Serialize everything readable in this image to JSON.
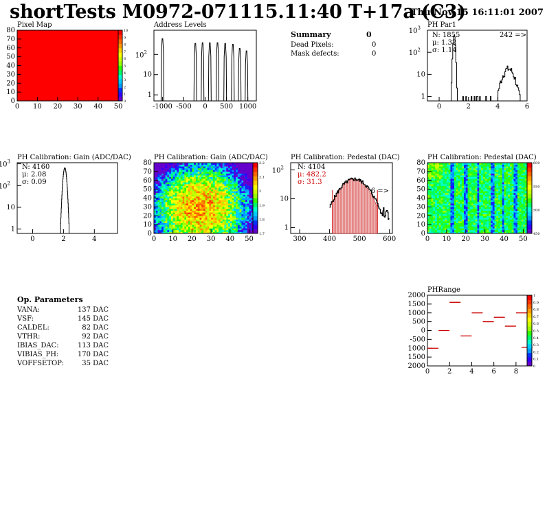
{
  "header": {
    "title": "shortTests M0972-071115.11:40 T+17a (C3)",
    "date": "Thu Nov 15 16:11:01 2007"
  },
  "summary": {
    "title": "Summary",
    "title_value": "0",
    "rows": [
      {
        "label": "Dead Pixels:",
        "value": "0"
      },
      {
        "label": "Mask defects:",
        "value": "0"
      }
    ]
  },
  "op_parameters": {
    "title": "Op. Parameters",
    "rows": [
      {
        "label": "VANA:",
        "value": "137 DAC"
      },
      {
        "label": "VSF:",
        "value": "145 DAC"
      },
      {
        "label": "CALDEL:",
        "value": "82 DAC"
      },
      {
        "label": "VTHR:",
        "value": "92 DAC"
      },
      {
        "label": "IBIAS_DAC:",
        "value": "113 DAC"
      },
      {
        "label": "VIBIAS_PH:",
        "value": "170 DAC"
      },
      {
        "label": "VOFFSETOP:",
        "value": "35 DAC"
      }
    ]
  },
  "chart_data": [
    {
      "id": "pixel-map",
      "type": "heatmap",
      "title": "Pixel Map",
      "xlim": [
        0,
        52
      ],
      "ylim": [
        0,
        80
      ],
      "xticks": [
        "0",
        "10",
        "20",
        "30",
        "40",
        "50"
      ],
      "yticks": [
        "0",
        "10",
        "20",
        "30",
        "40",
        "50",
        "60",
        "70",
        "80"
      ],
      "fill_value": 10,
      "fill_color": "#ff0000",
      "zticks": [
        "10",
        "9",
        "8",
        "7",
        "6",
        "5",
        "4",
        "3",
        "2",
        "1",
        "0"
      ]
    },
    {
      "id": "address-levels",
      "type": "line",
      "title": "Address Levels",
      "xlim": [
        -1200,
        1200
      ],
      "yscale": "log",
      "xticks": [
        "-1000",
        "-500",
        "0",
        "500",
        "1000"
      ],
      "yticks": [
        "1",
        "10",
        "10^2"
      ],
      "peaks": [
        {
          "x": -1000,
          "y": 600
        },
        {
          "x": -230,
          "y": 350
        },
        {
          "x": -60,
          "y": 380
        },
        {
          "x": 110,
          "y": 380
        },
        {
          "x": 290,
          "y": 380
        },
        {
          "x": 470,
          "y": 350
        },
        {
          "x": 650,
          "y": 320
        },
        {
          "x": 810,
          "y": 200
        },
        {
          "x": 970,
          "y": 150
        }
      ]
    },
    {
      "id": "ph-par1",
      "type": "line",
      "title": "PH Par1",
      "yscale": "log",
      "xlim": [
        -0.8,
        6
      ],
      "xticks": [
        "0",
        "2",
        "4",
        "6"
      ],
      "yticks": [
        "1",
        "10",
        "10^2",
        "10^3"
      ],
      "stats": [
        "N: 1855",
        "μ: 1.32",
        "σ: 1.14"
      ],
      "overflow": "242 =>"
    },
    {
      "id": "ph-gain-1d",
      "type": "line",
      "title": "PH Calibration: Gain (ADC/DAC)",
      "yscale": "log",
      "xlim": [
        -1,
        5.5
      ],
      "xticks": [
        "0",
        "2",
        "4"
      ],
      "yticks": [
        "1",
        "10",
        "10^2",
        "10^3"
      ],
      "stats": [
        "N: 4160",
        "μ: 2.08",
        "σ: 0.09"
      ]
    },
    {
      "id": "ph-gain-map",
      "type": "heatmap",
      "title": "PH Calibration: Gain (ADC/DAC)",
      "xlim": [
        0,
        52
      ],
      "ylim": [
        0,
        80
      ],
      "xticks": [
        "0",
        "10",
        "20",
        "30",
        "40",
        "50"
      ],
      "yticks": [
        "0",
        "10",
        "20",
        "30",
        "40",
        "50",
        "60",
        "70",
        "80"
      ],
      "zticks": [
        "2.2",
        "2.1",
        "2",
        "1.9",
        "1.8",
        "1.7"
      ]
    },
    {
      "id": "ph-pedestal-1d",
      "type": "line",
      "title": "PH Calibration: Pedestal (DAC)",
      "yscale": "log",
      "xlim": [
        270,
        610
      ],
      "xticks": [
        "300",
        "400",
        "500",
        "600"
      ],
      "yticks": [
        "1",
        "10",
        "10^2"
      ],
      "stats": [
        "N: 4104",
        "μ: 482.2",
        "σ: 31.3"
      ],
      "overflow": "6 =>",
      "fit_range": [
        410,
        560
      ]
    },
    {
      "id": "ph-pedestal-map",
      "type": "heatmap",
      "title": "PH Calibration: Pedestal (DAC)",
      "xlim": [
        0,
        52
      ],
      "ylim": [
        0,
        80
      ],
      "xticks": [
        "0",
        "10",
        "20",
        "30",
        "40",
        "50"
      ],
      "yticks": [
        "0",
        "10",
        "20",
        "30",
        "40",
        "50",
        "60",
        "70",
        "80"
      ],
      "zticks": [
        "600",
        "550",
        "500",
        "450"
      ]
    },
    {
      "id": "ph-range",
      "type": "scatter",
      "title": "PHRange",
      "xlim": [
        0,
        9
      ],
      "ylim": [
        -2000,
        2000
      ],
      "xticks": [
        "0",
        "2",
        "4",
        "6",
        "8"
      ],
      "yticks": [
        "2000",
        "1500",
        "1000",
        "500",
        "0",
        "-500",
        "1000",
        "1500",
        "2000"
      ],
      "zticks": [
        "1",
        "0.9",
        "0.8",
        "0.7",
        "0.6",
        "0.5",
        "0.4",
        "0.3",
        "0.2",
        "0.1",
        "0"
      ],
      "points": [
        {
          "x": 0,
          "y": -1000
        },
        {
          "x": 1,
          "y": 0
        },
        {
          "x": 2,
          "y": 1600
        },
        {
          "x": 3,
          "y": -300
        },
        {
          "x": 4,
          "y": 1000
        },
        {
          "x": 5,
          "y": 500
        },
        {
          "x": 6,
          "y": 750
        },
        {
          "x": 7,
          "y": 250
        },
        {
          "x": 8,
          "y": 1000
        },
        {
          "x": 8.5,
          "y": -950
        }
      ]
    }
  ]
}
